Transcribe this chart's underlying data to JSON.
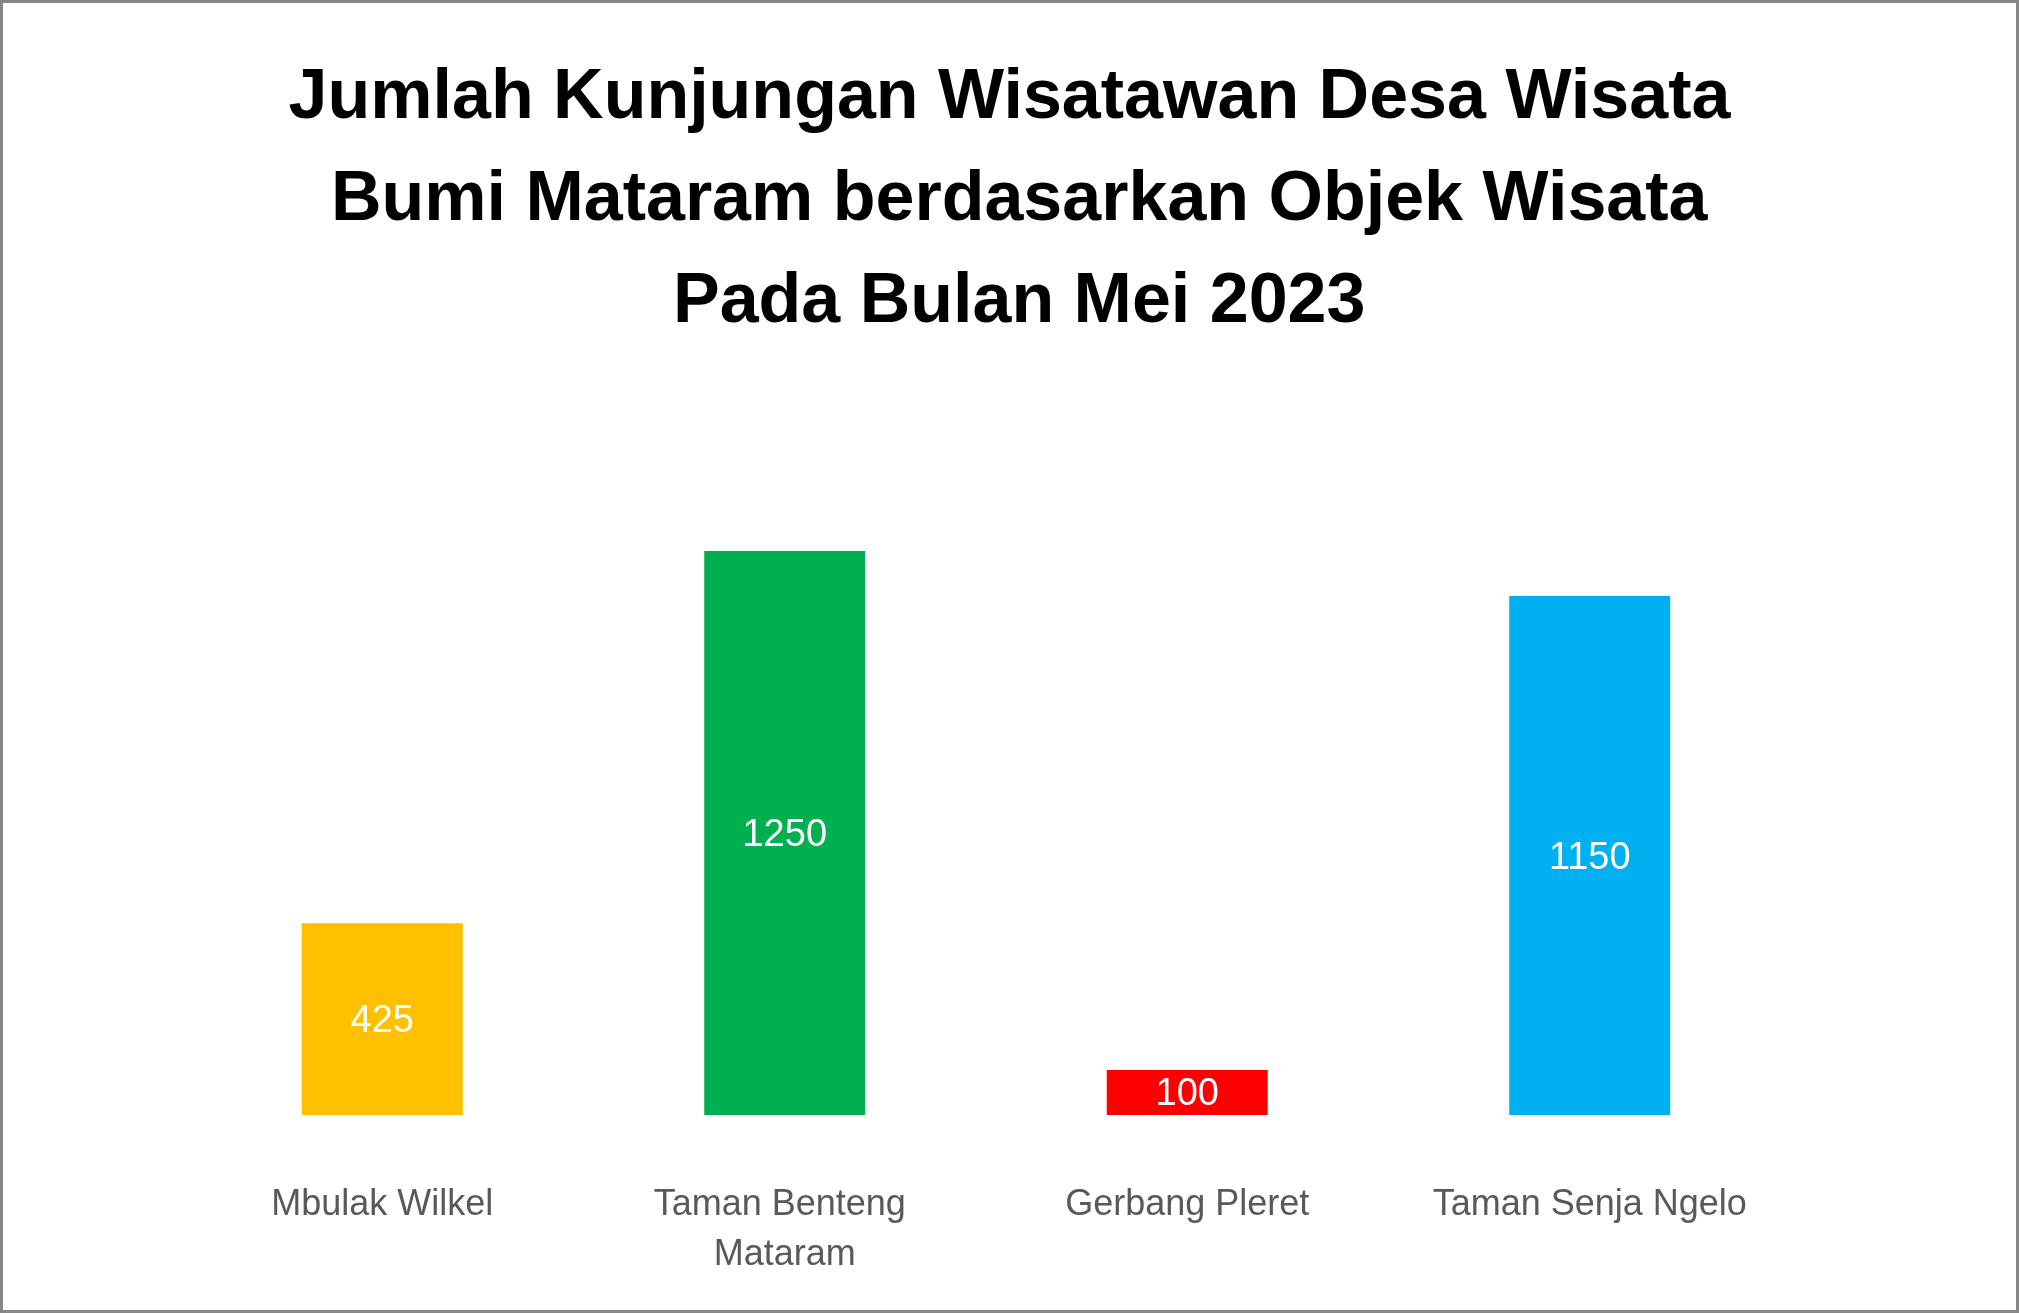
{
  "chart_data": {
    "type": "bar",
    "title": "Jumlah Kunjungan Wisatawan Desa Wisata Bumi Mataram berdasarkan Objek Wisata Pada Bulan Mei 2023",
    "categories": [
      "Mbulak Wilkel",
      "Taman Benteng Mataram",
      "Gerbang Pleret",
      "Taman Senja Ngelo"
    ],
    "values": [
      425,
      1250,
      100,
      1150
    ],
    "colors": [
      "#ffc000",
      "#00b050",
      "#ff0000",
      "#00b0f0"
    ],
    "data_labels": true,
    "tick_labels": "x"
  }
}
